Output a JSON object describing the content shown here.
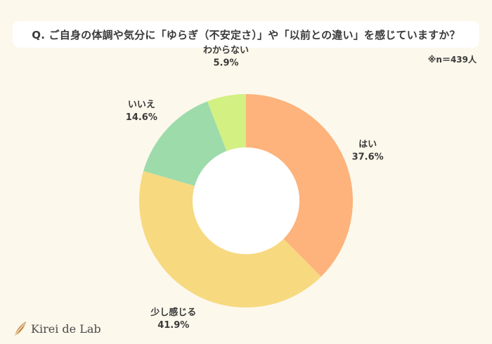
{
  "question": "Q. ご自身の体調や気分に「ゆらぎ（不安定さ）」や「以前との違い」を感じていますか？",
  "sample_note": "※n＝439人",
  "logo_text": "Kirei de Lab",
  "chart_data": {
    "type": "pie",
    "donut": true,
    "categories": [
      "はい",
      "少し感じる",
      "いいえ",
      "わからない"
    ],
    "values": [
      37.6,
      41.9,
      14.6,
      5.9
    ],
    "value_labels": [
      "37.6%",
      "41.9%",
      "14.6%",
      "5.9%"
    ],
    "colors": [
      "#fdb37b",
      "#f7d980",
      "#9ddbab",
      "#d3f083"
    ],
    "start": "top",
    "direction": "clockwise"
  }
}
